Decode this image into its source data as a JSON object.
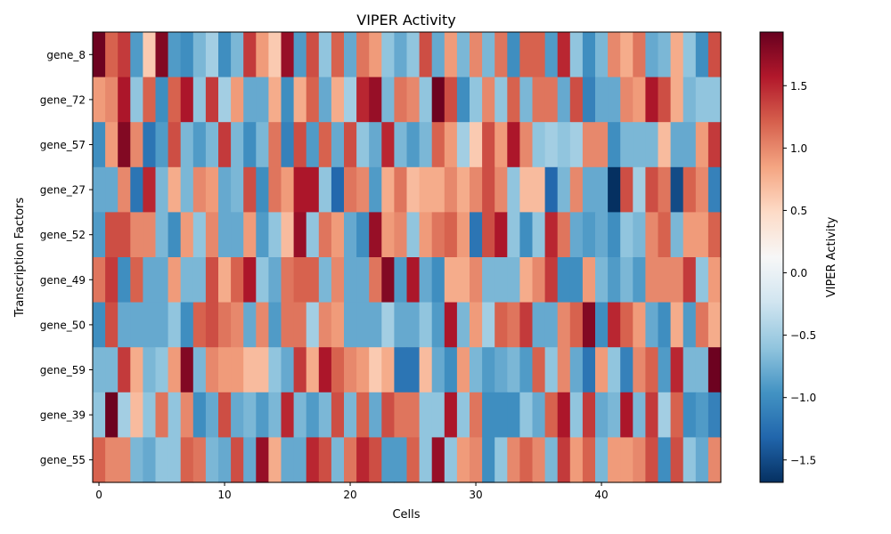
{
  "chart_data": {
    "type": "heatmap",
    "title": "VIPER Activity",
    "xlabel": "Cells",
    "ylabel": "Transcription Factors",
    "colorbar_label": "VIPER Activity",
    "colormap": "RdBu_r",
    "vmin": -1.68,
    "vmax": 1.93,
    "x_ticks": [
      0,
      10,
      20,
      30,
      40
    ],
    "colorbar_ticks": [
      -1.5,
      -1.0,
      -0.5,
      0.0,
      0.5,
      1.0,
      1.5
    ],
    "colorbar_tick_labels": [
      "−1.5",
      "−1.0",
      "−0.5",
      "0.0",
      "0.5",
      "1.0",
      "1.5"
    ],
    "rows": [
      "gene_8",
      "gene_72",
      "gene_57",
      "gene_27",
      "gene_52",
      "gene_49",
      "gene_50",
      "gene_59",
      "gene_39",
      "gene_55"
    ],
    "n_cells": 50,
    "values": [
      [
        1.9,
        1.2,
        1.4,
        -0.9,
        0.6,
        1.8,
        -0.9,
        -1.0,
        -0.7,
        -0.5,
        -1.0,
        -0.7,
        1.4,
        0.9,
        0.6,
        1.7,
        -0.9,
        1.3,
        -0.6,
        1.2,
        -0.8,
        1.1,
        0.9,
        -0.6,
        -0.8,
        -0.6,
        1.3,
        -0.8,
        0.9,
        -0.7,
        1.0,
        -0.7,
        1.1,
        -1.0,
        1.2,
        1.2,
        -0.9,
        1.5,
        -0.6,
        -1.0,
        -0.7,
        1.0,
        0.8,
        1.1,
        -0.8,
        -0.7,
        0.8,
        -0.6,
        -1.0,
        1.3
      ],
      [
        0.9,
        1.0,
        1.6,
        -0.6,
        1.2,
        -1.0,
        1.2,
        1.6,
        -0.6,
        1.4,
        -0.5,
        0.9,
        -0.8,
        -0.8,
        0.8,
        -1.0,
        0.8,
        1.2,
        -0.8,
        0.8,
        -0.5,
        1.5,
        1.7,
        -0.7,
        1.1,
        1.0,
        -0.6,
        1.9,
        1.3,
        -1.0,
        -0.6,
        1.0,
        -0.6,
        1.2,
        -0.7,
        1.1,
        1.1,
        -0.8,
        1.3,
        -1.1,
        -0.8,
        -0.8,
        1.0,
        0.9,
        1.6,
        1.3,
        0.8,
        -0.7,
        -0.6,
        -0.6
      ],
      [
        -1.0,
        0.9,
        1.8,
        1.0,
        -1.2,
        -0.9,
        1.3,
        -0.7,
        -0.9,
        -0.7,
        1.4,
        -0.7,
        -1.0,
        -0.7,
        1.1,
        -1.1,
        1.3,
        -0.9,
        1.2,
        -0.8,
        1.3,
        -0.6,
        -0.8,
        1.5,
        -0.7,
        -0.9,
        -0.7,
        1.2,
        0.9,
        -0.5,
        0.6,
        1.3,
        0.9,
        1.6,
        1.0,
        -0.6,
        -0.5,
        -0.6,
        -0.5,
        1.0,
        1.0,
        -1.0,
        -0.7,
        -0.7,
        -0.7,
        0.7,
        -0.8,
        -0.8,
        0.9,
        1.4
      ],
      [
        -0.8,
        -0.8,
        1.0,
        -1.2,
        1.5,
        -0.7,
        0.8,
        -0.7,
        1.0,
        0.9,
        -0.8,
        -0.7,
        1.3,
        -1.0,
        1.1,
        0.9,
        1.6,
        1.6,
        -0.6,
        -1.3,
        1.1,
        1.0,
        -0.9,
        0.8,
        1.1,
        0.7,
        0.8,
        0.8,
        1.0,
        0.8,
        1.0,
        1.3,
        1.0,
        -0.6,
        0.7,
        0.7,
        -1.3,
        -0.7,
        1.0,
        -0.8,
        -0.8,
        -1.7,
        1.3,
        -0.5,
        1.3,
        1.1,
        -1.5,
        1.2,
        1.0,
        -1.1
      ],
      [
        -0.9,
        1.3,
        1.3,
        1.0,
        1.0,
        -0.7,
        -1.0,
        0.9,
        -0.6,
        1.0,
        -0.8,
        -0.8,
        0.9,
        -0.9,
        -0.6,
        0.7,
        1.7,
        -0.6,
        1.1,
        0.9,
        -0.8,
        -1.0,
        1.7,
        0.9,
        1.0,
        -0.6,
        0.9,
        1.1,
        1.2,
        0.9,
        -1.2,
        1.3,
        1.6,
        -0.6,
        -1.0,
        -0.6,
        1.5,
        1.1,
        -0.8,
        -0.9,
        -0.8,
        -1.0,
        -0.6,
        -0.7,
        1.0,
        1.2,
        -0.7,
        0.9,
        0.9,
        1.2
      ],
      [
        1.1,
        1.4,
        -1.0,
        1.2,
        -0.8,
        -0.8,
        0.9,
        -0.7,
        -0.7,
        1.3,
        0.8,
        1.2,
        1.6,
        -0.6,
        -0.8,
        1.1,
        1.2,
        1.2,
        -0.7,
        1.0,
        -0.8,
        -0.8,
        1.1,
        1.8,
        -0.9,
        1.6,
        -0.8,
        -1.0,
        0.8,
        0.8,
        1.0,
        -0.7,
        -0.7,
        -0.7,
        0.8,
        1.0,
        1.4,
        -1.0,
        -1.0,
        0.9,
        -0.7,
        -0.9,
        -0.7,
        -0.9,
        1.0,
        1.0,
        1.0,
        1.4,
        -0.6,
        0.9
      ],
      [
        -1.0,
        1.3,
        -0.8,
        -0.8,
        -0.8,
        -0.8,
        -0.6,
        -1.0,
        1.2,
        1.3,
        1.1,
        1.0,
        -0.8,
        1.0,
        -0.9,
        1.1,
        1.1,
        -0.5,
        1.0,
        0.9,
        -0.8,
        -0.8,
        -0.8,
        -0.5,
        -0.8,
        -0.8,
        -0.6,
        -0.9,
        1.6,
        -0.7,
        0.9,
        -0.5,
        1.2,
        1.1,
        1.4,
        -0.8,
        -0.8,
        1.0,
        1.2,
        1.8,
        -1.0,
        1.5,
        1.2,
        0.9,
        -0.8,
        -1.0,
        0.8,
        -0.9,
        1.1,
        0.8
      ],
      [
        -0.7,
        -0.7,
        1.4,
        0.8,
        -0.7,
        -0.6,
        0.9,
        1.8,
        -0.7,
        1.0,
        0.9,
        0.9,
        0.7,
        0.7,
        -0.6,
        -0.8,
        1.4,
        0.8,
        1.6,
        1.2,
        1.0,
        0.9,
        0.6,
        0.8,
        -1.2,
        -1.2,
        0.7,
        -0.8,
        -1.0,
        0.9,
        -0.7,
        -0.9,
        -0.8,
        -0.7,
        -0.9,
        1.2,
        -0.6,
        1.0,
        -0.8,
        -1.2,
        0.9,
        -0.6,
        -1.1,
        1.0,
        1.2,
        -0.9,
        1.5,
        -0.7,
        -0.7,
        1.9
      ],
      [
        -0.6,
        1.9,
        -0.5,
        0.7,
        -0.6,
        1.1,
        -0.6,
        1.0,
        -1.0,
        -0.8,
        1.3,
        -0.8,
        -0.7,
        -0.9,
        -0.7,
        1.5,
        -0.7,
        -0.9,
        -0.7,
        1.3,
        -0.7,
        1.2,
        -0.8,
        1.3,
        1.1,
        1.1,
        -0.6,
        -0.6,
        1.6,
        -0.6,
        1.1,
        -1.0,
        -1.0,
        -1.0,
        -0.6,
        -0.8,
        1.2,
        1.6,
        -0.6,
        1.4,
        -0.8,
        -0.7,
        1.6,
        -0.7,
        1.4,
        -0.5,
        1.2,
        -1.0,
        -0.9,
        -1.1
      ],
      [
        1.2,
        1.0,
        1.0,
        -0.7,
        -0.8,
        -0.6,
        -0.6,
        1.2,
        1.1,
        -0.7,
        -0.8,
        1.3,
        -0.8,
        1.7,
        0.8,
        -0.8,
        -0.8,
        1.5,
        1.3,
        -0.7,
        1.1,
        1.5,
        1.3,
        -0.9,
        -0.9,
        1.2,
        -0.6,
        1.7,
        -0.6,
        0.9,
        1.0,
        -1.0,
        -0.6,
        1.0,
        1.2,
        1.0,
        -0.7,
        1.4,
        0.9,
        1.2,
        -0.7,
        0.9,
        0.9,
        1.0,
        1.3,
        -1.0,
        1.3,
        -0.6,
        -0.8,
        1.0
      ]
    ]
  }
}
